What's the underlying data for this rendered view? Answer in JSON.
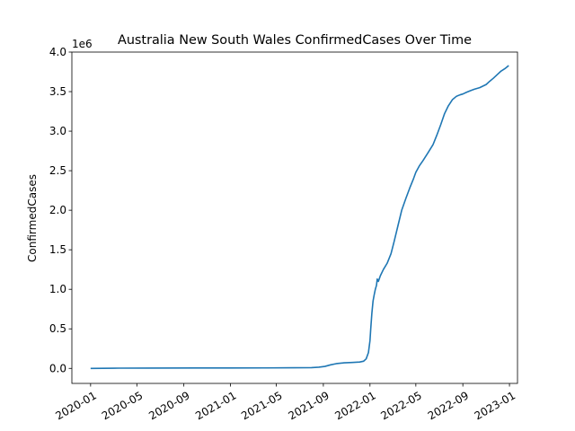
{
  "chart_data": {
    "type": "line",
    "title": "Australia New South Wales ConfirmedCases Over Time",
    "xlabel": "",
    "ylabel": "ConfirmedCases",
    "y_offset_label": "1e6",
    "xlim": [
      "2019-11-13",
      "2023-01-22"
    ],
    "ylim": [
      -0.19,
      4.0
    ],
    "grid": false,
    "line_color": "#1f77b4",
    "x_ticks": [
      {
        "date": "2020-01-01",
        "label": "2020-01"
      },
      {
        "date": "2020-05-01",
        "label": "2020-05"
      },
      {
        "date": "2020-09-01",
        "label": "2020-09"
      },
      {
        "date": "2021-01-01",
        "label": "2021-01"
      },
      {
        "date": "2021-05-01",
        "label": "2021-05"
      },
      {
        "date": "2021-09-01",
        "label": "2021-09"
      },
      {
        "date": "2022-01-01",
        "label": "2022-01"
      },
      {
        "date": "2022-05-01",
        "label": "2022-05"
      },
      {
        "date": "2022-09-01",
        "label": "2022-09"
      },
      {
        "date": "2023-01-01",
        "label": "2023-01"
      }
    ],
    "y_ticks": [
      {
        "value": 0.0,
        "label": "0.0"
      },
      {
        "value": 0.5,
        "label": "0.5"
      },
      {
        "value": 1.0,
        "label": "1.0"
      },
      {
        "value": 1.5,
        "label": "1.5"
      },
      {
        "value": 2.0,
        "label": "2.0"
      },
      {
        "value": 2.5,
        "label": "2.5"
      },
      {
        "value": 3.0,
        "label": "3.0"
      },
      {
        "value": 3.5,
        "label": "3.5"
      },
      {
        "value": 4.0,
        "label": "4.0"
      }
    ],
    "series": [
      {
        "x": [
          "2020-01-01",
          "2020-03-15",
          "2020-06-01",
          "2020-10-01",
          "2021-01-01",
          "2021-04-01",
          "2021-06-15",
          "2021-08-01",
          "2021-08-20",
          "2021-09-05",
          "2021-09-20",
          "2021-10-05",
          "2021-10-25",
          "2021-11-15",
          "2021-12-05",
          "2021-12-15",
          "2021-12-22",
          "2021-12-28",
          "2022-01-01",
          "2022-01-03",
          "2022-01-06",
          "2022-01-09",
          "2022-01-12",
          "2022-01-15",
          "2022-01-18",
          "2022-01-20",
          "2022-01-23",
          "2022-01-28",
          "2022-02-05",
          "2022-02-15",
          "2022-02-25",
          "2022-03-05",
          "2022-03-15",
          "2022-03-25",
          "2022-04-05",
          "2022-04-15",
          "2022-04-25",
          "2022-05-01",
          "2022-05-10",
          "2022-05-20",
          "2022-06-01",
          "2022-06-15",
          "2022-06-25",
          "2022-07-05",
          "2022-07-15",
          "2022-07-25",
          "2022-08-05",
          "2022-08-15",
          "2022-08-25",
          "2022-09-01",
          "2022-09-10",
          "2022-09-20",
          "2022-10-01",
          "2022-10-15",
          "2022-11-01",
          "2022-11-10",
          "2022-11-20",
          "2022-12-01",
          "2022-12-10",
          "2022-12-20",
          "2022-12-30"
        ],
        "values": [
          0.0,
          0.003,
          0.004,
          0.005,
          0.005,
          0.006,
          0.008,
          0.01,
          0.015,
          0.025,
          0.045,
          0.06,
          0.07,
          0.075,
          0.08,
          0.09,
          0.12,
          0.2,
          0.35,
          0.5,
          0.7,
          0.85,
          0.93,
          1.0,
          1.05,
          1.13,
          1.1,
          1.17,
          1.25,
          1.33,
          1.45,
          1.6,
          1.8,
          2.0,
          2.15,
          2.28,
          2.4,
          2.48,
          2.56,
          2.63,
          2.72,
          2.83,
          2.95,
          3.08,
          3.22,
          3.32,
          3.4,
          3.44,
          3.46,
          3.47,
          3.49,
          3.51,
          3.53,
          3.55,
          3.59,
          3.63,
          3.67,
          3.72,
          3.76,
          3.79,
          3.83
        ]
      }
    ]
  }
}
